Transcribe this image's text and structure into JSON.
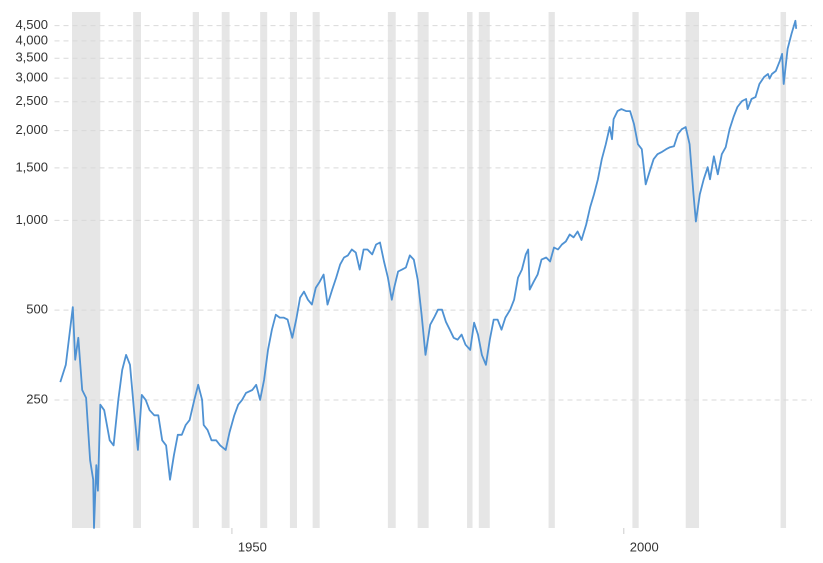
{
  "chart_data": {
    "type": "line",
    "color": "#4f92d3",
    "shade_color": "#e6e6e6",
    "log_scale": true,
    "grid": true,
    "xlim": [
      1928,
      2022.1
    ],
    "xticks": [
      1950,
      2000
    ],
    "ylim": [
      93,
      5000
    ],
    "yticks": [
      250,
      500,
      {
        "value": 1000,
        "label": "1,000"
      },
      {
        "value": 1500,
        "label": "1,500"
      },
      {
        "value": 2000,
        "label": "2,000"
      },
      {
        "value": 2500,
        "label": "2,500"
      },
      {
        "value": 3000,
        "label": "3,000"
      },
      {
        "value": 3500,
        "label": "3,500"
      },
      {
        "value": 4000,
        "label": "4,000"
      },
      {
        "value": 4500,
        "label": "4,500"
      }
    ],
    "shaded_ranges": [
      [
        1929.6,
        1933.2
      ],
      [
        1937.4,
        1938.4
      ],
      [
        1945.0,
        1945.8
      ],
      [
        1948.7,
        1949.7
      ],
      [
        1953.6,
        1954.5
      ],
      [
        1957.4,
        1958.3
      ],
      [
        1960.3,
        1961.2
      ],
      [
        1969.9,
        1970.9
      ],
      [
        1973.7,
        1975.1
      ],
      [
        1980.0,
        1980.7
      ],
      [
        1981.5,
        1982.9
      ],
      [
        1990.4,
        1991.2
      ],
      [
        2001.1,
        2001.9
      ],
      [
        2007.9,
        2009.6
      ],
      [
        2020.0,
        2020.7
      ]
    ],
    "x": [
      1928.1,
      1928.8,
      1929.7,
      1930.0,
      1930.4,
      1930.9,
      1931.4,
      1931.9,
      1932.3,
      1932.4,
      1932.7,
      1932.9,
      1933.2,
      1933.7,
      1934.4,
      1934.9,
      1935.5,
      1936.0,
      1936.5,
      1937.0,
      1937.5,
      1938.0,
      1938.5,
      1939.0,
      1939.5,
      1940.1,
      1940.6,
      1941.1,
      1941.6,
      1942.1,
      1942.6,
      1943.1,
      1943.6,
      1944.1,
      1944.6,
      1945.2,
      1945.7,
      1946.2,
      1946.4,
      1946.9,
      1947.4,
      1948.0,
      1948.5,
      1949.2,
      1949.7,
      1950.3,
      1950.8,
      1951.3,
      1951.8,
      1952.6,
      1953.1,
      1953.6,
      1954.1,
      1954.6,
      1955.1,
      1955.6,
      1956.1,
      1956.6,
      1957.1,
      1957.7,
      1958.2,
      1958.7,
      1959.2,
      1959.7,
      1960.2,
      1960.7,
      1961.2,
      1961.7,
      1962.2,
      1962.8,
      1963.3,
      1963.8,
      1964.3,
      1964.8,
      1965.3,
      1965.8,
      1966.3,
      1966.8,
      1967.3,
      1967.9,
      1968.4,
      1968.9,
      1969.4,
      1969.9,
      1970.4,
      1970.7,
      1971.2,
      1971.7,
      1972.2,
      1972.7,
      1973.2,
      1973.7,
      1974.2,
      1974.7,
      1975.3,
      1975.8,
      1976.3,
      1976.8,
      1977.3,
      1977.8,
      1978.3,
      1978.8,
      1979.3,
      1979.8,
      1980.4,
      1980.9,
      1981.4,
      1981.9,
      1982.4,
      1982.9,
      1983.4,
      1983.9,
      1984.4,
      1984.9,
      1985.5,
      1986.0,
      1986.5,
      1987.0,
      1987.5,
      1987.8,
      1988.0,
      1988.5,
      1989.0,
      1989.5,
      1990.1,
      1990.6,
      1991.1,
      1991.6,
      1992.1,
      1992.6,
      1993.1,
      1993.6,
      1994.1,
      1994.6,
      1995.2,
      1995.7,
      1996.2,
      1996.7,
      1997.2,
      1997.7,
      1998.2,
      1998.5,
      1998.7,
      1999.2,
      1999.7,
      2000.3,
      2000.8,
      2001.3,
      2001.8,
      2002.3,
      2002.8,
      2003.3,
      2003.8,
      2004.3,
      2004.8,
      2005.4,
      2005.9,
      2006.4,
      2006.9,
      2007.4,
      2007.9,
      2008.4,
      2008.9,
      2009.2,
      2009.7,
      2010.2,
      2010.7,
      2011.0,
      2011.5,
      2012.0,
      2012.5,
      2013.0,
      2013.5,
      2014.0,
      2014.5,
      2015.1,
      2015.6,
      2015.8,
      2016.3,
      2016.8,
      2017.3,
      2017.9,
      2018.4,
      2018.6,
      2018.9,
      2019.4,
      2019.9,
      2020.2,
      2020.4,
      2020.9,
      2021.4,
      2021.9,
      2022.0
    ],
    "values": [
      287,
      328,
      512,
      341,
      404,
      270,
      254,
      157,
      135,
      93,
      151,
      124,
      241,
      231,
      183,
      176,
      250,
      315,
      354,
      328,
      231,
      170,
      260,
      250,
      231,
      222,
      222,
      183,
      176,
      135,
      163,
      191,
      191,
      206,
      214,
      250,
      281,
      250,
      206,
      198,
      183,
      183,
      176,
      170,
      195,
      222,
      241,
      250,
      264,
      270,
      281,
      250,
      292,
      368,
      430,
      483,
      472,
      472,
      465,
      404,
      465,
      551,
      577,
      542,
      522,
      595,
      623,
      658,
      522,
      586,
      643,
      711,
      751,
      763,
      799,
      780,
      684,
      799,
      799,
      769,
      830,
      843,
      728,
      643,
      542,
      595,
      674,
      684,
      695,
      763,
      739,
      633,
      483,
      354,
      447,
      472,
      502,
      502,
      457,
      430,
      404,
      398,
      414,
      383,
      368,
      454,
      414,
      354,
      328,
      398,
      465,
      465,
      430,
      472,
      502,
      542,
      643,
      684,
      769,
      799,
      586,
      623,
      658,
      739,
      751,
      728,
      811,
      799,
      830,
      850,
      897,
      877,
      918,
      860,
      969,
      1106,
      1223,
      1374,
      1604,
      1801,
      2055,
      1873,
      2186,
      2326,
      2362,
      2326,
      2326,
      2104,
      1801,
      1733,
      1321,
      1461,
      1604,
      1667,
      1693,
      1733,
      1760,
      1774,
      1947,
      2023,
      2055,
      1801,
      1223,
      992,
      1223,
      1374,
      1508,
      1374,
      1641,
      1428,
      1667,
      1760,
      2023,
      2221,
      2400,
      2514,
      2553,
      2362,
      2553,
      2592,
      2868,
      3027,
      3097,
      2990,
      3097,
      3171,
      3427,
      3617,
      2868,
      3760,
      4222,
      4670,
      4390
    ]
  }
}
